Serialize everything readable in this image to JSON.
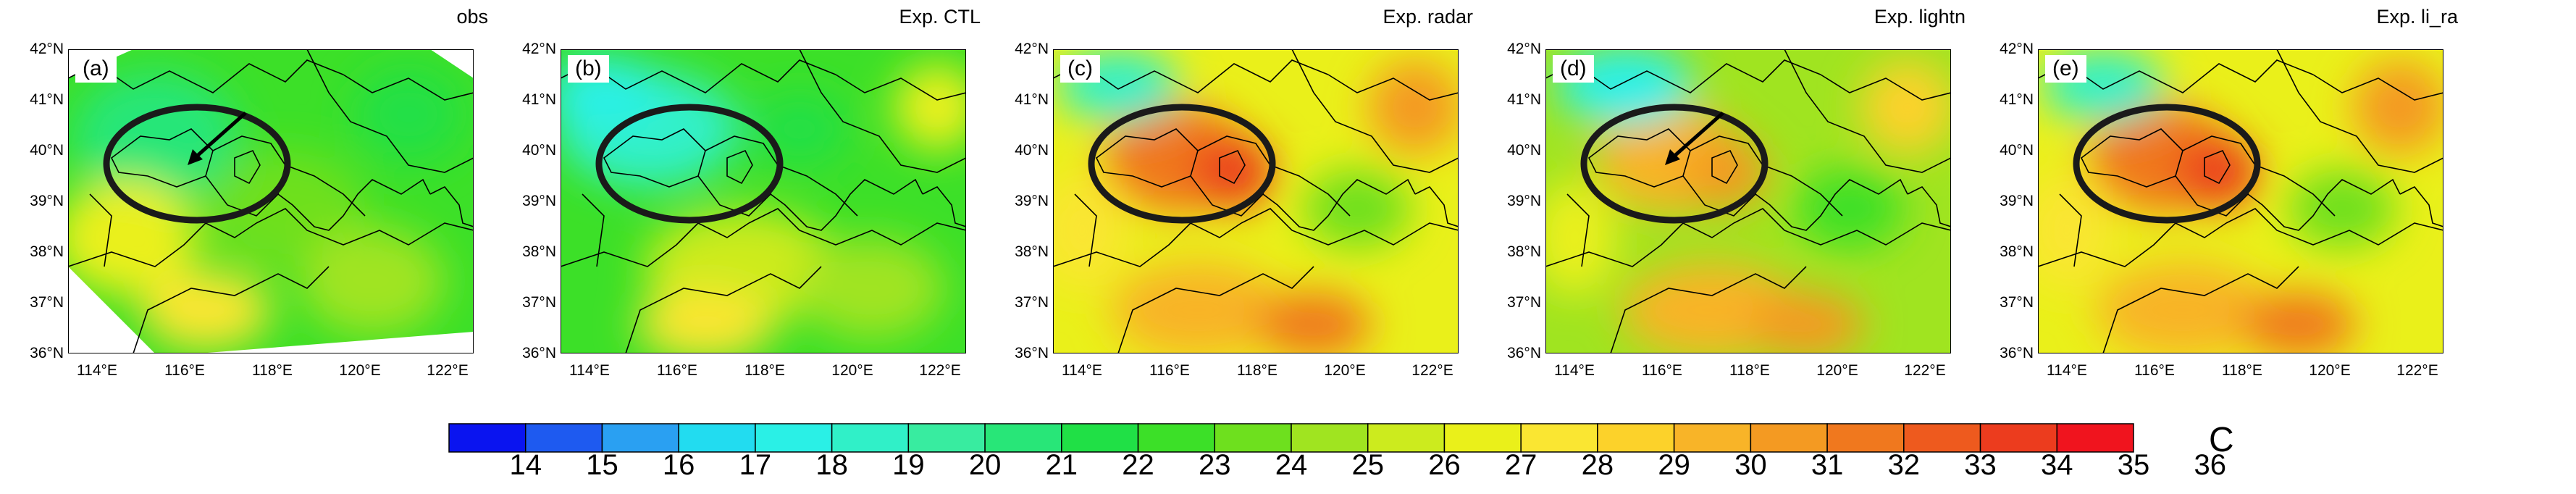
{
  "panels": [
    {
      "id": "obs",
      "title": "obs",
      "label": "(a)",
      "arrow": true,
      "scheme": "obs"
    },
    {
      "id": "ctl",
      "title": "Exp. CTL",
      "label": "(b)",
      "arrow": false,
      "scheme": "cool"
    },
    {
      "id": "radar",
      "title": "Exp. radar",
      "label": "(c)",
      "arrow": false,
      "scheme": "warm"
    },
    {
      "id": "lightn",
      "title": "Exp. lightn",
      "label": "(d)",
      "arrow": true,
      "scheme": "mid"
    },
    {
      "id": "li_ra",
      "title": "Exp. li_ra",
      "label": "(e)",
      "arrow": false,
      "scheme": "warm"
    }
  ],
  "lat_labels": [
    "42°N",
    "41°N",
    "40°N",
    "39°N",
    "38°N",
    "37°N",
    "36°N"
  ],
  "lon_labels": [
    "114°E",
    "116°E",
    "118°E",
    "120°E",
    "122°E"
  ],
  "colorbar": {
    "ticks": [
      "14",
      "15",
      "16",
      "17",
      "18",
      "19",
      "20",
      "21",
      "22",
      "23",
      "24",
      "25",
      "26",
      "27",
      "28",
      "29",
      "30",
      "31",
      "32",
      "33",
      "34",
      "35",
      "36"
    ],
    "colors": [
      "#0a14f0",
      "#1e5af0",
      "#2aa0f2",
      "#22dcf0",
      "#2af0e6",
      "#30f0c8",
      "#38eca0",
      "#28e678",
      "#20e046",
      "#3ce028",
      "#6ee01e",
      "#a0e420",
      "#cceb1e",
      "#eaf01a",
      "#fae632",
      "#fcd22a",
      "#f8b428",
      "#f49a22",
      "#f0781e",
      "#ee5a1e",
      "#ec3c1e",
      "#f0141e"
    ],
    "unit": "C"
  }
}
